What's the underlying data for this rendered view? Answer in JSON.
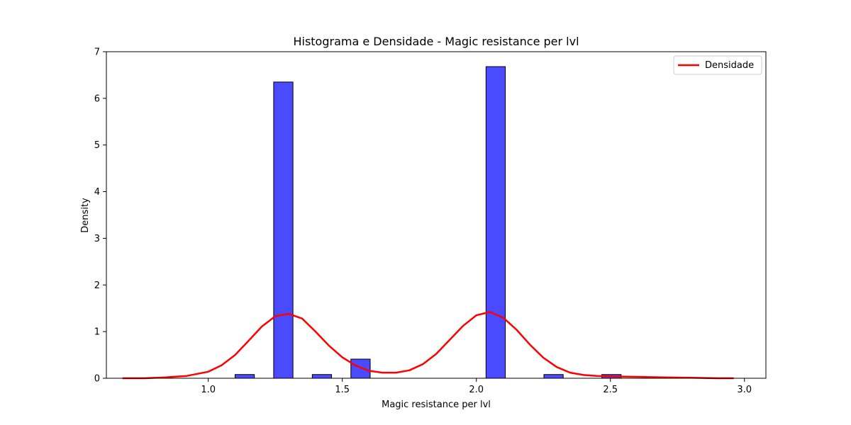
{
  "chart_data": {
    "type": "bar",
    "title": "Histograma e Densidade - Magic resistance per lvl",
    "xlabel": "Magic resistance per lvl",
    "ylabel": "Density",
    "xlim": [
      0.62,
      3.08
    ],
    "ylim": [
      0,
      7.0
    ],
    "x_ticks": [
      "1.0",
      "1.5",
      "2.0",
      "2.5",
      "3.0"
    ],
    "x_tick_values": [
      1.0,
      1.5,
      2.0,
      2.5,
      3.0
    ],
    "y_ticks": [
      "0",
      "1",
      "2",
      "3",
      "4",
      "5",
      "6",
      "7"
    ],
    "y_tick_values": [
      0,
      1,
      2,
      3,
      4,
      5,
      6,
      7
    ],
    "grid": false,
    "legend_position": "top-right",
    "histogram": {
      "bar_fill": "#4a4aff",
      "bar_edge": "#000000",
      "bins": [
        {
          "x0": 1.1,
          "x1": 1.172,
          "density": 0.08
        },
        {
          "x0": 1.244,
          "x1": 1.316,
          "density": 6.35
        },
        {
          "x0": 1.388,
          "x1": 1.46,
          "density": 0.08
        },
        {
          "x0": 1.532,
          "x1": 1.604,
          "density": 0.41
        },
        {
          "x0": 2.036,
          "x1": 2.108,
          "density": 6.68
        },
        {
          "x0": 2.252,
          "x1": 2.324,
          "density": 0.08
        },
        {
          "x0": 2.468,
          "x1": 2.54,
          "density": 0.08
        }
      ]
    },
    "series": [
      {
        "name": "Densidade",
        "type": "line",
        "color": "#ff0000",
        "x": [
          0.68,
          0.76,
          0.84,
          0.92,
          1.0,
          1.05,
          1.1,
          1.15,
          1.2,
          1.25,
          1.3,
          1.35,
          1.4,
          1.45,
          1.5,
          1.55,
          1.6,
          1.65,
          1.7,
          1.75,
          1.8,
          1.85,
          1.9,
          1.95,
          2.0,
          2.05,
          2.1,
          2.15,
          2.2,
          2.25,
          2.3,
          2.35,
          2.4,
          2.45,
          2.5,
          2.6,
          2.7,
          2.8,
          2.9,
          2.96
        ],
        "y": [
          0.0,
          0.0,
          0.02,
          0.05,
          0.14,
          0.28,
          0.5,
          0.8,
          1.11,
          1.33,
          1.38,
          1.28,
          1.0,
          0.7,
          0.45,
          0.27,
          0.16,
          0.12,
          0.12,
          0.17,
          0.3,
          0.52,
          0.82,
          1.12,
          1.35,
          1.42,
          1.3,
          1.04,
          0.72,
          0.44,
          0.24,
          0.12,
          0.07,
          0.05,
          0.04,
          0.03,
          0.02,
          0.01,
          0.0,
          0.0
        ]
      }
    ]
  }
}
